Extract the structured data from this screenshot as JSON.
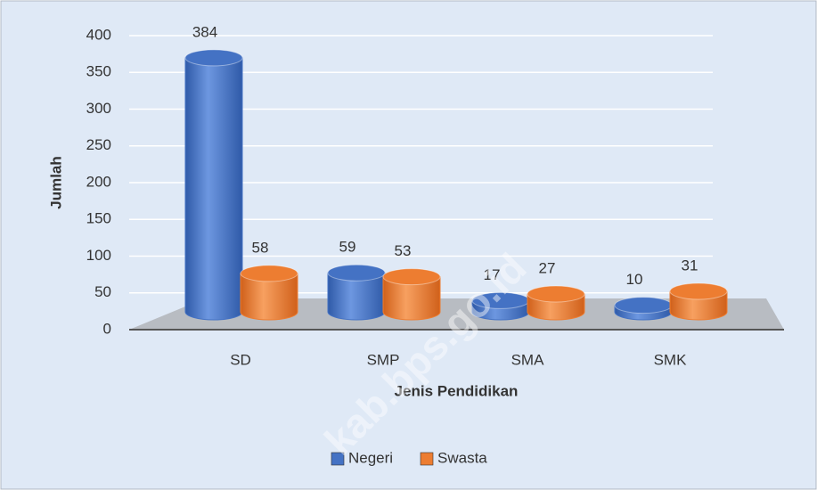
{
  "chart_data": {
    "type": "bar3d",
    "x_label": "Jenis Pendidikan",
    "y_label": "Jumlah",
    "categories": [
      "SD",
      "SMP",
      "SMA",
      "SMK"
    ],
    "series": [
      {
        "name": "Negeri",
        "color": "#4472c4",
        "values": [
          384,
          59,
          17,
          10
        ]
      },
      {
        "name": "Swasta",
        "color": "#ed7d31",
        "values": [
          58,
          53,
          27,
          31
        ]
      }
    ],
    "ylim": [
      0,
      400
    ],
    "yticks": [
      0,
      50,
      100,
      150,
      200,
      250,
      300,
      350,
      400
    ],
    "grid": true,
    "legend": "bottom",
    "watermark": "kab.bps.go.id"
  }
}
